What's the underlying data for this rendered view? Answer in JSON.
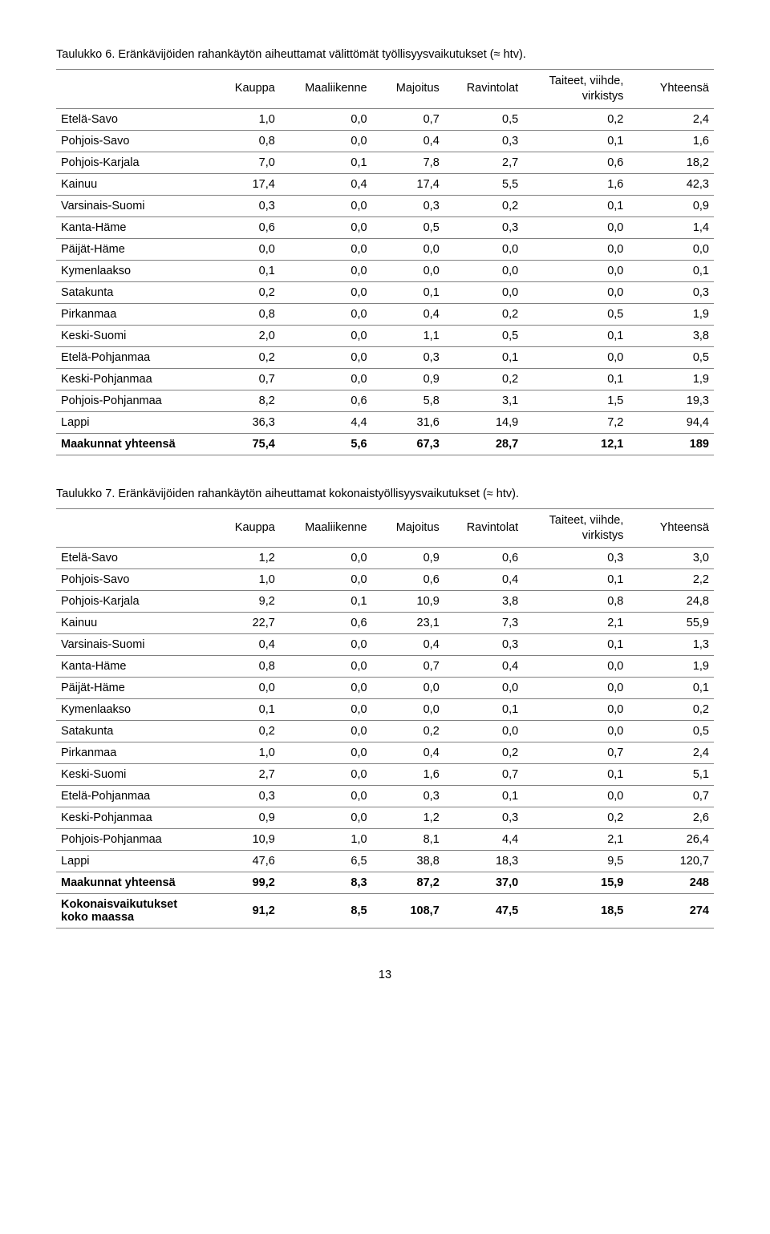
{
  "table6": {
    "title": "Taulukko 6. Eränkävijöiden rahankäytön aiheuttamat välittömät työllisyysvaikutukset (≈ htv).",
    "columns": [
      "",
      "Kauppa",
      "Maaliikenne",
      "Majoitus",
      "Ravintolat",
      "Taiteet, viihde,\nvirkistys",
      "Yhteensä"
    ],
    "rows": [
      {
        "label": "Etelä-Savo",
        "vals": [
          "1,0",
          "0,0",
          "0,7",
          "0,5",
          "0,2",
          "2,4"
        ],
        "bold": false
      },
      {
        "label": "Pohjois-Savo",
        "vals": [
          "0,8",
          "0,0",
          "0,4",
          "0,3",
          "0,1",
          "1,6"
        ],
        "bold": false
      },
      {
        "label": "Pohjois-Karjala",
        "vals": [
          "7,0",
          "0,1",
          "7,8",
          "2,7",
          "0,6",
          "18,2"
        ],
        "bold": false
      },
      {
        "label": "Kainuu",
        "vals": [
          "17,4",
          "0,4",
          "17,4",
          "5,5",
          "1,6",
          "42,3"
        ],
        "bold": false
      },
      {
        "label": "Varsinais-Suomi",
        "vals": [
          "0,3",
          "0,0",
          "0,3",
          "0,2",
          "0,1",
          "0,9"
        ],
        "bold": false
      },
      {
        "label": "Kanta-Häme",
        "vals": [
          "0,6",
          "0,0",
          "0,5",
          "0,3",
          "0,0",
          "1,4"
        ],
        "bold": false
      },
      {
        "label": "Päijät-Häme",
        "vals": [
          "0,0",
          "0,0",
          "0,0",
          "0,0",
          "0,0",
          "0,0"
        ],
        "bold": false
      },
      {
        "label": "Kymenlaakso",
        "vals": [
          "0,1",
          "0,0",
          "0,0",
          "0,0",
          "0,0",
          "0,1"
        ],
        "bold": false
      },
      {
        "label": "Satakunta",
        "vals": [
          "0,2",
          "0,0",
          "0,1",
          "0,0",
          "0,0",
          "0,3"
        ],
        "bold": false
      },
      {
        "label": "Pirkanmaa",
        "vals": [
          "0,8",
          "0,0",
          "0,4",
          "0,2",
          "0,5",
          "1,9"
        ],
        "bold": false
      },
      {
        "label": "Keski-Suomi",
        "vals": [
          "2,0",
          "0,0",
          "1,1",
          "0,5",
          "0,1",
          "3,8"
        ],
        "bold": false
      },
      {
        "label": "Etelä-Pohjanmaa",
        "vals": [
          "0,2",
          "0,0",
          "0,3",
          "0,1",
          "0,0",
          "0,5"
        ],
        "bold": false
      },
      {
        "label": "Keski-Pohjanmaa",
        "vals": [
          "0,7",
          "0,0",
          "0,9",
          "0,2",
          "0,1",
          "1,9"
        ],
        "bold": false
      },
      {
        "label": "Pohjois-Pohjanmaa",
        "vals": [
          "8,2",
          "0,6",
          "5,8",
          "3,1",
          "1,5",
          "19,3"
        ],
        "bold": false
      },
      {
        "label": "Lappi",
        "vals": [
          "36,3",
          "4,4",
          "31,6",
          "14,9",
          "7,2",
          "94,4"
        ],
        "bold": false
      },
      {
        "label": "Maakunnat yhteensä",
        "vals": [
          "75,4",
          "5,6",
          "67,3",
          "28,7",
          "12,1",
          "189"
        ],
        "bold": true
      }
    ]
  },
  "table7": {
    "title": "Taulukko 7. Eränkävijöiden rahankäytön aiheuttamat kokonaistyöllisyysvaikutukset (≈ htv).",
    "columns": [
      "",
      "Kauppa",
      "Maaliikenne",
      "Majoitus",
      "Ravintolat",
      "Taiteet, viihde,\nvirkistys",
      "Yhteensä"
    ],
    "rows": [
      {
        "label": "Etelä-Savo",
        "vals": [
          "1,2",
          "0,0",
          "0,9",
          "0,6",
          "0,3",
          "3,0"
        ],
        "bold": false
      },
      {
        "label": "Pohjois-Savo",
        "vals": [
          "1,0",
          "0,0",
          "0,6",
          "0,4",
          "0,1",
          "2,2"
        ],
        "bold": false
      },
      {
        "label": "Pohjois-Karjala",
        "vals": [
          "9,2",
          "0,1",
          "10,9",
          "3,8",
          "0,8",
          "24,8"
        ],
        "bold": false
      },
      {
        "label": "Kainuu",
        "vals": [
          "22,7",
          "0,6",
          "23,1",
          "7,3",
          "2,1",
          "55,9"
        ],
        "bold": false
      },
      {
        "label": "Varsinais-Suomi",
        "vals": [
          "0,4",
          "0,0",
          "0,4",
          "0,3",
          "0,1",
          "1,3"
        ],
        "bold": false
      },
      {
        "label": "Kanta-Häme",
        "vals": [
          "0,8",
          "0,0",
          "0,7",
          "0,4",
          "0,0",
          "1,9"
        ],
        "bold": false
      },
      {
        "label": "Päijät-Häme",
        "vals": [
          "0,0",
          "0,0",
          "0,0",
          "0,0",
          "0,0",
          "0,1"
        ],
        "bold": false
      },
      {
        "label": "Kymenlaakso",
        "vals": [
          "0,1",
          "0,0",
          "0,0",
          "0,1",
          "0,0",
          "0,2"
        ],
        "bold": false
      },
      {
        "label": "Satakunta",
        "vals": [
          "0,2",
          "0,0",
          "0,2",
          "0,0",
          "0,0",
          "0,5"
        ],
        "bold": false
      },
      {
        "label": "Pirkanmaa",
        "vals": [
          "1,0",
          "0,0",
          "0,4",
          "0,2",
          "0,7",
          "2,4"
        ],
        "bold": false
      },
      {
        "label": "Keski-Suomi",
        "vals": [
          "2,7",
          "0,0",
          "1,6",
          "0,7",
          "0,1",
          "5,1"
        ],
        "bold": false
      },
      {
        "label": "Etelä-Pohjanmaa",
        "vals": [
          "0,3",
          "0,0",
          "0,3",
          "0,1",
          "0,0",
          "0,7"
        ],
        "bold": false
      },
      {
        "label": "Keski-Pohjanmaa",
        "vals": [
          "0,9",
          "0,0",
          "1,2",
          "0,3",
          "0,2",
          "2,6"
        ],
        "bold": false
      },
      {
        "label": "Pohjois-Pohjanmaa",
        "vals": [
          "10,9",
          "1,0",
          "8,1",
          "4,4",
          "2,1",
          "26,4"
        ],
        "bold": false
      },
      {
        "label": "Lappi",
        "vals": [
          "47,6",
          "6,5",
          "38,8",
          "18,3",
          "9,5",
          "120,7"
        ],
        "bold": false
      },
      {
        "label": "Maakunnat yhteensä",
        "vals": [
          "99,2",
          "8,3",
          "87,2",
          "37,0",
          "15,9",
          "248"
        ],
        "bold": true
      },
      {
        "label": "Kokonaisvaikutukset\nkoko maassa",
        "vals": [
          "91,2",
          "8,5",
          "108,7",
          "47,5",
          "18,5",
          "274"
        ],
        "bold": true
      }
    ]
  },
  "pageNumber": "13",
  "colWidths": [
    "24%",
    "10%",
    "14%",
    "11%",
    "12%",
    "16%",
    "13%"
  ]
}
